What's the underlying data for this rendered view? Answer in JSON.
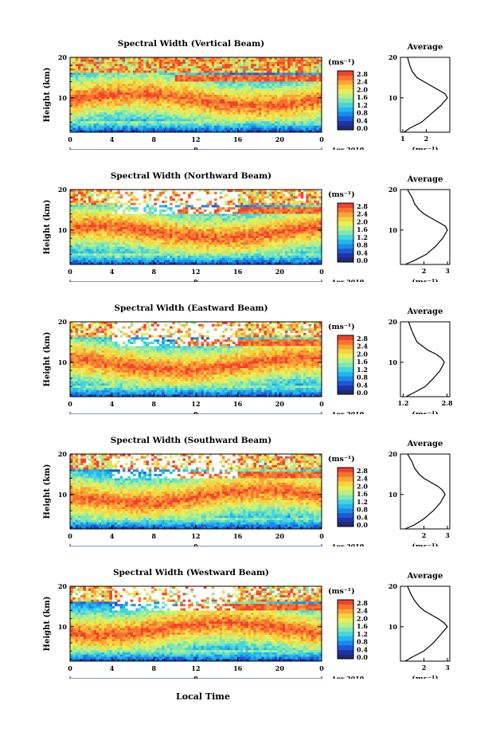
{
  "figure": {
    "x_axis_label": "Local Time",
    "date_label": "Apr 2019",
    "day_label": "9",
    "colorbar_units": "(ms⁻¹)",
    "colorbar_ticks": [
      "0.0",
      "0.4",
      "0.8",
      "1.2",
      "1.6",
      "2.0",
      "2.4",
      "2.8"
    ],
    "colormap": [
      "#1e2c6b",
      "#2233a8",
      "#1e58d6",
      "#1a8ae8",
      "#22b6ef",
      "#45d4e0",
      "#7ee6b4",
      "#b7ef86",
      "#e5ef5a",
      "#f7d23e",
      "#f9a535",
      "#f7732f",
      "#f0432c"
    ],
    "avg_title": "Average",
    "avg_units": "(ms⁻¹)",
    "y_axis_label": "Height (km)"
  },
  "chart_data": [
    {
      "type": "heatmap",
      "title": "Spectral Width (Vertical Beam)",
      "ylabel": "Height (km)",
      "xlabel": "Local Time",
      "x_ticks": [
        "0",
        "4",
        "8",
        "12",
        "16",
        "20",
        "0"
      ],
      "y_ticks": [
        "10",
        "20"
      ],
      "xlim": [
        0,
        24
      ],
      "ylim": [
        1.5,
        20
      ],
      "zlim": [
        0.0,
        3.0
      ],
      "profile": {
        "x": [
          1.05,
          1.3,
          1.8,
          2.2,
          2.6,
          2.9,
          2.8,
          2.5,
          2.2,
          1.9,
          1.6,
          1.4,
          1.3,
          1.2
        ],
        "y": [
          1.5,
          2.5,
          4,
          6,
          8,
          10,
          11,
          12,
          13,
          14,
          15,
          16.5,
          18,
          20
        ],
        "xlim": [
          0.9,
          3.0
        ],
        "x_ticks": [
          "1",
          "2"
        ]
      }
    },
    {
      "type": "heatmap",
      "title": "Spectral Width (Northward Beam)",
      "ylabel": "Height (km)",
      "xlabel": "Local Time",
      "x_ticks": [
        "0",
        "4",
        "8",
        "12",
        "16",
        "20",
        "0"
      ],
      "y_ticks": [
        "10",
        "20"
      ],
      "xlim": [
        0,
        24
      ],
      "ylim": [
        1.5,
        20
      ],
      "zlim": [
        0.0,
        3.0
      ],
      "profile": {
        "x": [
          1.2,
          1.6,
          2.1,
          2.5,
          2.8,
          3.0,
          2.9,
          2.6,
          2.3,
          2.0,
          1.8,
          1.6,
          1.5,
          1.3
        ],
        "y": [
          1.5,
          2.5,
          4,
          6,
          8,
          10,
          11,
          12,
          13,
          14,
          15,
          16.5,
          18,
          20
        ],
        "xlim": [
          1.0,
          3.1
        ],
        "x_ticks": [
          "2",
          "3"
        ]
      }
    },
    {
      "type": "heatmap",
      "title": "Spectral Width (Eastward Beam)",
      "ylabel": "Height (km)",
      "xlabel": "Local Time",
      "x_ticks": [
        "0",
        "4",
        "8",
        "12",
        "16",
        "20",
        "0"
      ],
      "y_ticks": [
        "10",
        "20"
      ],
      "xlim": [
        0,
        24
      ],
      "ylim": [
        1.5,
        20
      ],
      "zlim": [
        0.0,
        3.0
      ],
      "profile": {
        "x": [
          1.3,
          1.6,
          2.0,
          2.3,
          2.55,
          2.7,
          2.6,
          2.4,
          2.1,
          1.9,
          1.7,
          1.6,
          1.5,
          1.4
        ],
        "y": [
          1.5,
          2.5,
          4,
          6,
          8,
          10,
          11,
          12,
          13,
          14,
          15,
          16.5,
          18,
          20
        ],
        "xlim": [
          1.1,
          2.9
        ],
        "x_ticks": [
          "1.2",
          "2.8"
        ]
      }
    },
    {
      "type": "heatmap",
      "title": "Spectral Width (Southward Beam)",
      "ylabel": "Height (km)",
      "xlabel": "Local Time",
      "x_ticks": [
        "0",
        "4",
        "8",
        "12",
        "16",
        "20",
        "0"
      ],
      "y_ticks": [
        "10",
        "20"
      ],
      "xlim": [
        0,
        24
      ],
      "ylim": [
        1.5,
        20
      ],
      "zlim": [
        0.0,
        3.0
      ],
      "profile": {
        "x": [
          1.2,
          1.6,
          2.0,
          2.4,
          2.7,
          2.9,
          2.8,
          2.6,
          2.3,
          2.0,
          1.8,
          1.6,
          1.5,
          1.3
        ],
        "y": [
          1.5,
          2.5,
          4,
          6,
          8,
          10,
          11,
          12,
          13,
          14,
          15,
          16.5,
          18,
          20
        ],
        "xlim": [
          1.0,
          3.1
        ],
        "x_ticks": [
          "2",
          "3"
        ]
      }
    },
    {
      "type": "heatmap",
      "title": "Spectral Width (Westward Beam)",
      "ylabel": "Height (km)",
      "xlabel": "Local Time",
      "x_ticks": [
        "0",
        "4",
        "8",
        "12",
        "16",
        "20",
        "0"
      ],
      "y_ticks": [
        "10",
        "20"
      ],
      "xlim": [
        0,
        24
      ],
      "ylim": [
        1.5,
        20
      ],
      "zlim": [
        0.0,
        3.0
      ],
      "profile": {
        "x": [
          1.2,
          1.5,
          2.0,
          2.4,
          2.7,
          3.0,
          2.85,
          2.6,
          2.3,
          2.0,
          1.8,
          1.6,
          1.45,
          1.3
        ],
        "y": [
          1.5,
          2.5,
          4,
          6,
          8,
          10,
          11,
          12,
          13,
          14,
          15,
          16.5,
          18,
          20
        ],
        "xlim": [
          1.0,
          3.1
        ],
        "x_ticks": [
          "2",
          "3"
        ]
      }
    }
  ]
}
